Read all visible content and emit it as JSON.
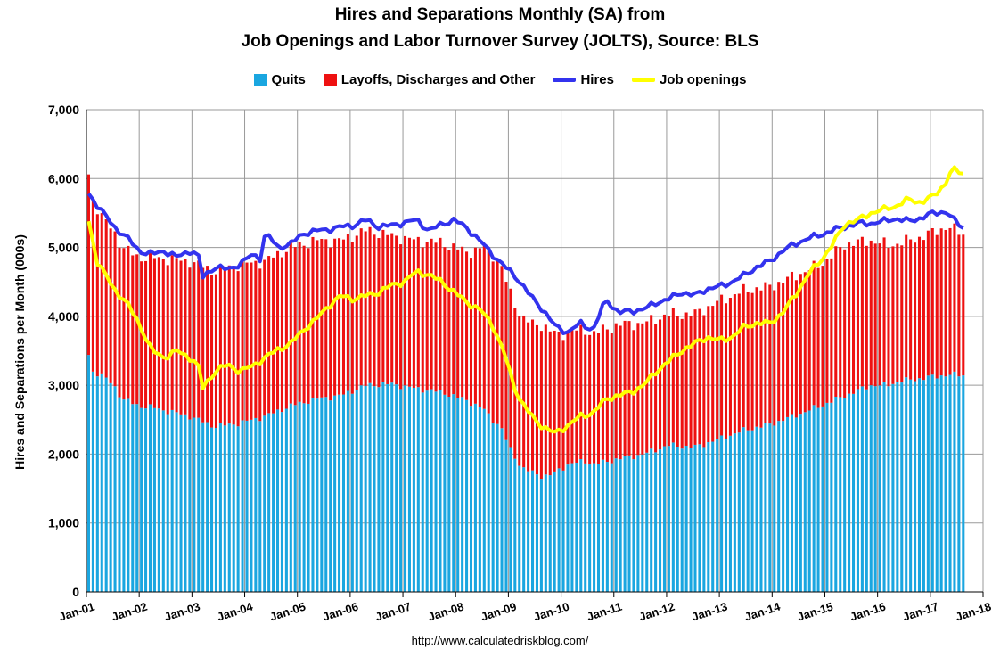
{
  "title_line1": "Hires and Separations Monthly (SA) from",
  "title_line2": "Job Openings and Labor Turnover Survey (JOLTS), Source: BLS",
  "source": "http://www.calculatedriskblog.com/",
  "legend": {
    "quits": "Quits",
    "layoffs": "Layoffs, Discharges and Other",
    "hires": "Hires",
    "openings": "Job openings"
  },
  "colors": {
    "quits": "#1aa6e0",
    "layoffs": "#ee1111",
    "hires": "#3333ee",
    "openings": "#ffff00"
  },
  "chart_data": {
    "type": "bar",
    "title": "Hires and Separations Monthly (SA) from Job Openings and Labor Turnover Survey (JOLTS), Source: BLS",
    "xlabel": "",
    "ylabel": "Hires and Separations per Month (000s)",
    "ylim": [
      0,
      7000
    ],
    "yticks": [
      0,
      1000,
      2000,
      3000,
      4000,
      5000,
      6000,
      7000
    ],
    "ytick_labels": [
      "0",
      "1,000",
      "2,000",
      "3,000",
      "4,000",
      "5,000",
      "6,000",
      "7,000"
    ],
    "xtick_labels": [
      "Jan-01",
      "Jan-02",
      "Jan-03",
      "Jan-04",
      "Jan-05",
      "Jan-06",
      "Jan-07",
      "Jan-08",
      "Jan-09",
      "Jan-10",
      "Jan-11",
      "Jan-12",
      "Jan-13",
      "Jan-14",
      "Jan-15",
      "Jan-16",
      "Jan-17",
      "Jan-18"
    ],
    "grid": true,
    "legend_position": "top",
    "start": "2001-01",
    "end": "2017-08",
    "stacked": true,
    "series": [
      {
        "name": "Quits",
        "kind": "bar",
        "anchors": [
          [
            0,
            3440
          ],
          [
            1,
            3200
          ],
          [
            3,
            3150
          ],
          [
            6,
            3000
          ],
          [
            8,
            2800
          ],
          [
            12,
            2700
          ],
          [
            15,
            2680
          ],
          [
            24,
            2550
          ],
          [
            30,
            2400
          ],
          [
            36,
            2450
          ],
          [
            42,
            2550
          ],
          [
            48,
            2700
          ],
          [
            54,
            2800
          ],
          [
            60,
            2850
          ],
          [
            66,
            3000
          ],
          [
            72,
            3020
          ],
          [
            78,
            2950
          ],
          [
            84,
            2900
          ],
          [
            90,
            2780
          ],
          [
            94,
            2650
          ],
          [
            96,
            2500
          ],
          [
            98,
            2400
          ],
          [
            100,
            2100
          ],
          [
            103,
            1800
          ],
          [
            106,
            1720
          ],
          [
            108,
            1680
          ],
          [
            110,
            1700
          ],
          [
            114,
            1850
          ],
          [
            118,
            1900
          ],
          [
            120,
            1850
          ],
          [
            126,
            1930
          ],
          [
            132,
            2000
          ],
          [
            138,
            2130
          ],
          [
            144,
            2100
          ],
          [
            150,
            2220
          ],
          [
            156,
            2350
          ],
          [
            162,
            2430
          ],
          [
            168,
            2560
          ],
          [
            174,
            2700
          ],
          [
            180,
            2850
          ],
          [
            186,
            3000
          ],
          [
            190,
            3000
          ],
          [
            192,
            3050
          ],
          [
            198,
            3100
          ],
          [
            204,
            3150
          ],
          [
            208,
            3150
          ]
        ]
      },
      {
        "name": "Layoffs, Discharges and Other",
        "kind": "bar",
        "anchors": [
          [
            0,
            2620
          ],
          [
            3,
            2300
          ],
          [
            8,
            2200
          ],
          [
            12,
            2150
          ],
          [
            18,
            2200
          ],
          [
            24,
            2250
          ],
          [
            30,
            2250
          ],
          [
            36,
            2300
          ],
          [
            42,
            2250
          ],
          [
            48,
            2300
          ],
          [
            54,
            2300
          ],
          [
            60,
            2250
          ],
          [
            66,
            2250
          ],
          [
            72,
            2150
          ],
          [
            78,
            2150
          ],
          [
            84,
            2170
          ],
          [
            90,
            2150
          ],
          [
            94,
            2350
          ],
          [
            96,
            2400
          ],
          [
            98,
            2350
          ],
          [
            102,
            2200
          ],
          [
            106,
            2150
          ],
          [
            108,
            2200
          ],
          [
            112,
            1950
          ],
          [
            118,
            1900
          ],
          [
            120,
            1900
          ],
          [
            126,
            1950
          ],
          [
            132,
            1900
          ],
          [
            138,
            1900
          ],
          [
            144,
            1930
          ],
          [
            150,
            2000
          ],
          [
            156,
            2030
          ],
          [
            162,
            2000
          ],
          [
            168,
            2030
          ],
          [
            174,
            2050
          ],
          [
            180,
            2200
          ],
          [
            186,
            2100
          ],
          [
            192,
            2000
          ],
          [
            198,
            2050
          ],
          [
            204,
            2150
          ],
          [
            208,
            2050
          ]
        ]
      },
      {
        "name": "Hires",
        "kind": "line",
        "anchors": [
          [
            0,
            5780
          ],
          [
            2,
            5620
          ],
          [
            6,
            5300
          ],
          [
            9,
            5150
          ],
          [
            12,
            4950
          ],
          [
            15,
            4900
          ],
          [
            18,
            4950
          ],
          [
            21,
            4860
          ],
          [
            24,
            4950
          ],
          [
            26,
            4900
          ],
          [
            27,
            4560
          ],
          [
            30,
            4720
          ],
          [
            33,
            4680
          ],
          [
            36,
            4760
          ],
          [
            39,
            4900
          ],
          [
            41,
            4840
          ],
          [
            42,
            5220
          ],
          [
            45,
            5000
          ],
          [
            48,
            5050
          ],
          [
            51,
            5200
          ],
          [
            54,
            5240
          ],
          [
            57,
            5260
          ],
          [
            60,
            5300
          ],
          [
            63,
            5320
          ],
          [
            66,
            5400
          ],
          [
            69,
            5300
          ],
          [
            72,
            5320
          ],
          [
            75,
            5360
          ],
          [
            78,
            5400
          ],
          [
            81,
            5240
          ],
          [
            84,
            5340
          ],
          [
            87,
            5400
          ],
          [
            90,
            5280
          ],
          [
            93,
            5100
          ],
          [
            96,
            4900
          ],
          [
            99,
            4720
          ],
          [
            102,
            4550
          ],
          [
            105,
            4300
          ],
          [
            108,
            4100
          ],
          [
            111,
            3850
          ],
          [
            114,
            3770
          ],
          [
            117,
            3900
          ],
          [
            120,
            3800
          ],
          [
            123,
            4250
          ],
          [
            126,
            4050
          ],
          [
            129,
            4080
          ],
          [
            132,
            4100
          ],
          [
            135,
            4200
          ],
          [
            138,
            4250
          ],
          [
            141,
            4350
          ],
          [
            144,
            4300
          ],
          [
            147,
            4400
          ],
          [
            150,
            4430
          ],
          [
            153,
            4500
          ],
          [
            156,
            4600
          ],
          [
            159,
            4720
          ],
          [
            162,
            4800
          ],
          [
            165,
            4950
          ],
          [
            168,
            5050
          ],
          [
            171,
            5130
          ],
          [
            174,
            5180
          ],
          [
            177,
            5250
          ],
          [
            180,
            5300
          ],
          [
            183,
            5350
          ],
          [
            186,
            5350
          ],
          [
            189,
            5380
          ],
          [
            192,
            5420
          ],
          [
            195,
            5380
          ],
          [
            198,
            5430
          ],
          [
            201,
            5500
          ],
          [
            204,
            5520
          ],
          [
            206,
            5380
          ],
          [
            208,
            5290
          ]
        ]
      },
      {
        "name": "Job openings",
        "kind": "line",
        "anchors": [
          [
            0,
            5380
          ],
          [
            2,
            4800
          ],
          [
            4,
            4600
          ],
          [
            6,
            4400
          ],
          [
            9,
            4200
          ],
          [
            12,
            3900
          ],
          [
            15,
            3500
          ],
          [
            18,
            3400
          ],
          [
            21,
            3500
          ],
          [
            24,
            3400
          ],
          [
            26,
            3300
          ],
          [
            27,
            2950
          ],
          [
            30,
            3200
          ],
          [
            33,
            3300
          ],
          [
            36,
            3200
          ],
          [
            39,
            3280
          ],
          [
            42,
            3400
          ],
          [
            45,
            3520
          ],
          [
            48,
            3600
          ],
          [
            51,
            3800
          ],
          [
            54,
            3950
          ],
          [
            57,
            4150
          ],
          [
            60,
            4300
          ],
          [
            63,
            4250
          ],
          [
            66,
            4300
          ],
          [
            69,
            4350
          ],
          [
            72,
            4450
          ],
          [
            75,
            4500
          ],
          [
            78,
            4650
          ],
          [
            81,
            4600
          ],
          [
            84,
            4500
          ],
          [
            87,
            4350
          ],
          [
            90,
            4200
          ],
          [
            93,
            4100
          ],
          [
            96,
            3880
          ],
          [
            99,
            3450
          ],
          [
            101,
            3000
          ],
          [
            103,
            2750
          ],
          [
            106,
            2500
          ],
          [
            108,
            2400
          ],
          [
            111,
            2300
          ],
          [
            114,
            2420
          ],
          [
            117,
            2550
          ],
          [
            120,
            2600
          ],
          [
            123,
            2800
          ],
          [
            126,
            2850
          ],
          [
            129,
            2900
          ],
          [
            132,
            3000
          ],
          [
            135,
            3200
          ],
          [
            138,
            3350
          ],
          [
            141,
            3500
          ],
          [
            144,
            3600
          ],
          [
            147,
            3700
          ],
          [
            150,
            3650
          ],
          [
            153,
            3700
          ],
          [
            156,
            3850
          ],
          [
            159,
            3900
          ],
          [
            162,
            3900
          ],
          [
            165,
            4050
          ],
          [
            168,
            4300
          ],
          [
            171,
            4600
          ],
          [
            174,
            4800
          ],
          [
            177,
            5050
          ],
          [
            180,
            5350
          ],
          [
            183,
            5400
          ],
          [
            186,
            5500
          ],
          [
            189,
            5550
          ],
          [
            192,
            5600
          ],
          [
            195,
            5700
          ],
          [
            198,
            5650
          ],
          [
            201,
            5750
          ],
          [
            204,
            5950
          ],
          [
            205,
            6100
          ],
          [
            206,
            6120
          ],
          [
            208,
            6080
          ]
        ]
      }
    ]
  }
}
